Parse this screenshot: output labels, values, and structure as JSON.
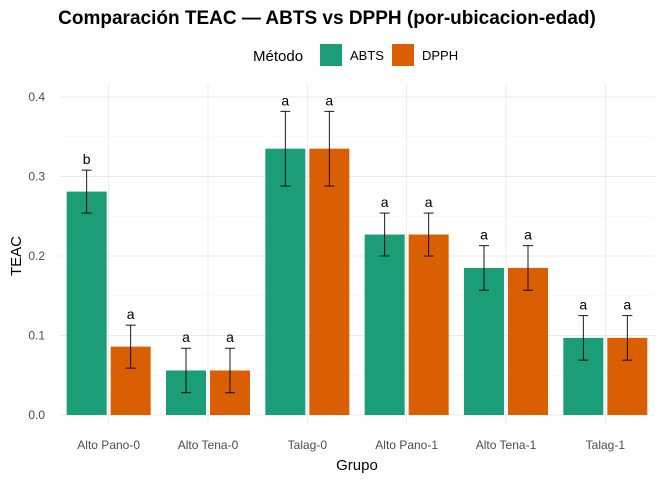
{
  "chart_data": {
    "type": "bar",
    "title": "Comparación TEAC — ABTS vs DPPH (por-ubicacion-edad)",
    "xlabel": "Grupo",
    "ylabel": "TEAC",
    "ylim": [
      0,
      0.4
    ],
    "yticks": [
      0.0,
      0.1,
      0.2,
      0.3,
      0.4
    ],
    "ytick_labels": [
      "0.0",
      "0.1",
      "0.2",
      "0.3",
      "0.4"
    ],
    "grid": true,
    "legend": {
      "title": "Método",
      "position": "top"
    },
    "categories": [
      "Alto Pano-0",
      "Alto Tena-0",
      "Talag-0",
      "Alto Pano-1",
      "Alto Tena-1",
      "Talag-1"
    ],
    "series": [
      {
        "name": "ABTS",
        "color": "#1b9e77",
        "values": [
          0.281,
          0.056,
          0.335,
          0.227,
          0.185,
          0.097
        ],
        "errors": [
          0.027,
          0.028,
          0.047,
          0.027,
          0.028,
          0.028
        ],
        "labels": [
          "b",
          "a",
          "a",
          "a",
          "a",
          "a"
        ]
      },
      {
        "name": "DPPH",
        "color": "#d95f02",
        "values": [
          0.086,
          0.056,
          0.335,
          0.227,
          0.185,
          0.097
        ],
        "errors": [
          0.027,
          0.028,
          0.047,
          0.027,
          0.028,
          0.028
        ],
        "labels": [
          "a",
          "a",
          "a",
          "a",
          "a",
          "a"
        ]
      }
    ]
  }
}
